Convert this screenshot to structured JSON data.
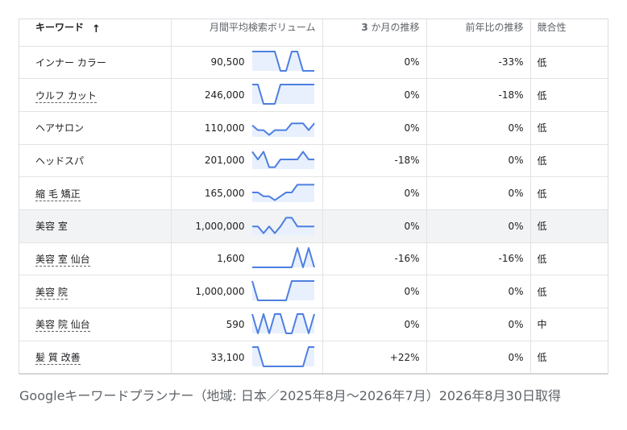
{
  "header": {
    "keyword": "キーワード",
    "volume": "月間平均検索ボリューム",
    "three_month_bold": "3",
    "three_month_rest": " か月の推移",
    "yoy": "前年比の推移",
    "competition": "競合性"
  },
  "rows": [
    {
      "keyword": "インナー カラー",
      "link": false,
      "volume": "90,500",
      "three_month": "0%",
      "yoy": "-33%",
      "competition": "低",
      "highlight": false,
      "trend": [
        1,
        1,
        1,
        1,
        1,
        0,
        0,
        1,
        1,
        0,
        0,
        0
      ]
    },
    {
      "keyword": "ウルフ カット",
      "link": true,
      "volume": "246,000",
      "three_month": "0%",
      "yoy": "-18%",
      "competition": "低",
      "highlight": false,
      "trend": [
        1,
        1,
        0,
        0,
        0,
        1,
        1,
        1,
        1,
        1,
        1,
        1
      ]
    },
    {
      "keyword": "ヘアサロン",
      "link": false,
      "volume": "110,000",
      "three_month": "0%",
      "yoy": "0%",
      "competition": "低",
      "highlight": false,
      "trend": [
        0.6,
        0.35,
        0.35,
        0.1,
        0.35,
        0.35,
        0.35,
        0.7,
        0.7,
        0.7,
        0.35,
        0.7
      ]
    },
    {
      "keyword": "ヘッドスパ",
      "link": false,
      "volume": "201,000",
      "three_month": "-18%",
      "yoy": "0%",
      "competition": "低",
      "highlight": false,
      "trend": [
        0.9,
        0.5,
        0.9,
        0.1,
        0.1,
        0.5,
        0.5,
        0.5,
        0.5,
        0.9,
        0.5,
        0.5
      ]
    },
    {
      "keyword": "縮 毛 矯正",
      "link": true,
      "volume": "165,000",
      "three_month": "0%",
      "yoy": "0%",
      "competition": "低",
      "highlight": false,
      "trend": [
        0.5,
        0.5,
        0.3,
        0.3,
        0.1,
        0.3,
        0.5,
        0.5,
        0.9,
        0.9,
        0.9,
        0.9
      ]
    },
    {
      "keyword": "美容 室",
      "link": false,
      "volume": "1,000,000",
      "three_month": "0%",
      "yoy": "0%",
      "competition": "低",
      "highlight": true,
      "trend": [
        0.45,
        0.45,
        0.1,
        0.45,
        0.1,
        0.45,
        0.9,
        0.9,
        0.45,
        0.45,
        0.45,
        0.45
      ]
    },
    {
      "keyword": "美容 室 仙台",
      "link": true,
      "volume": "1,600",
      "three_month": "-16%",
      "yoy": "-16%",
      "competition": "低",
      "highlight": false,
      "trend": [
        0,
        0,
        0,
        0,
        0,
        0,
        0,
        0,
        1,
        0,
        1,
        0
      ]
    },
    {
      "keyword": "美容 院",
      "link": true,
      "volume": "1,000,000",
      "three_month": "0%",
      "yoy": "0%",
      "competition": "低",
      "highlight": false,
      "trend": [
        1,
        0,
        0,
        0,
        0,
        0,
        0,
        1,
        1,
        1,
        1,
        1
      ]
    },
    {
      "keyword": "美容 院 仙台",
      "link": true,
      "volume": "590",
      "three_month": "0%",
      "yoy": "0%",
      "competition": "中",
      "highlight": false,
      "trend": [
        1,
        0,
        1,
        0,
        1,
        1,
        0,
        0,
        1,
        1,
        0,
        1
      ]
    },
    {
      "keyword": "髪 質 改善",
      "link": true,
      "volume": "33,100",
      "three_month": "+22%",
      "yoy": "0%",
      "competition": "低",
      "highlight": false,
      "trend": [
        1,
        1,
        0,
        0,
        0,
        0,
        0,
        0,
        0,
        0,
        1,
        1
      ]
    }
  ],
  "caption": "Googleキーワードプランナー（地域: 日本／2025年8月〜2026年7月）2026年8月30日取得",
  "colors": {
    "sparkline_line": "#4d7fe0",
    "sparkline_fill": "#e8f0fe",
    "highlight_row": "#f1f3f4"
  },
  "icons": {
    "sort": "arrow-up-icon"
  }
}
